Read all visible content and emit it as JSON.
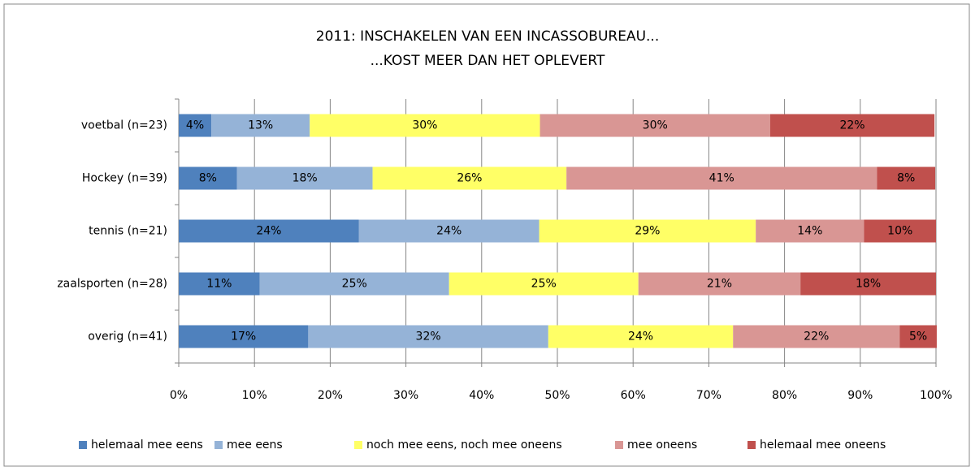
{
  "chart_data": {
    "type": "stacked_bar_horizontal",
    "title": [
      "2011: INSCHAKELEN VAN EEN INCASSOBUREAU...",
      "...KOST MEER DAN HET OPLEVERT"
    ],
    "categories": [
      "voetbal (n=23)",
      "Hockey (n=39)",
      "tennis (n=21)",
      "zaalsporten (n=28)",
      "overig (n=41)"
    ],
    "series": [
      {
        "name": "helemaal mee eens",
        "color": "#4f81bd",
        "values": [
          4.3,
          7.7,
          23.8,
          10.7,
          17.1
        ],
        "value_labels": [
          "4%",
          "8%",
          "24%",
          "11%",
          "17%"
        ]
      },
      {
        "name": "mee eens",
        "color": "#95b3d7",
        "values": [
          13.0,
          17.9,
          23.8,
          25.0,
          31.7
        ],
        "value_labels": [
          "13%",
          "18%",
          "24%",
          "25%",
          "32%"
        ]
      },
      {
        "name": "noch mee eens, noch mee oneens",
        "color": "#ffff66",
        "values": [
          30.4,
          25.6,
          28.6,
          25.0,
          24.4
        ],
        "value_labels": [
          "30%",
          "26%",
          "29%",
          "25%",
          "24%"
        ]
      },
      {
        "name": "mee oneens",
        "color": "#d99694",
        "values": [
          30.4,
          41.0,
          14.3,
          21.4,
          22.0
        ],
        "value_labels": [
          "30%",
          "41%",
          "14%",
          "21%",
          "22%"
        ]
      },
      {
        "name": "helemaal mee oneens",
        "color": "#c0504d",
        "values": [
          21.7,
          7.7,
          9.5,
          17.9,
          4.9
        ],
        "value_labels": [
          "22%",
          "8%",
          "10%",
          "18%",
          "5%"
        ]
      }
    ],
    "xlim": [
      0,
      100
    ],
    "xticks": [
      {
        "value": 0,
        "label": "0%"
      },
      {
        "value": 10,
        "label": "10%"
      },
      {
        "value": 20,
        "label": "20%"
      },
      {
        "value": 30,
        "label": "30%"
      },
      {
        "value": 40,
        "label": "40%"
      },
      {
        "value": 50,
        "label": "50%"
      },
      {
        "value": 60,
        "label": "60%"
      },
      {
        "value": 70,
        "label": "70%"
      },
      {
        "value": 80,
        "label": "80%"
      },
      {
        "value": 90,
        "label": "90%"
      },
      {
        "value": 100,
        "label": "100%"
      }
    ],
    "grid": true,
    "legend": "bottom"
  }
}
